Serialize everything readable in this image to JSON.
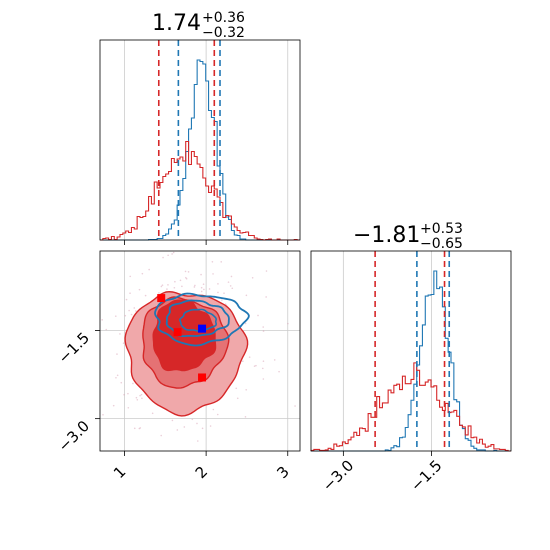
{
  "chart_data": {
    "type": "corner",
    "colors": {
      "series_a": "#1f77b4",
      "series_b": "#d62728",
      "grid": "#cccccc",
      "marker_truth": "#0000ff",
      "marker_red": "#ff0000"
    },
    "titles": {
      "x_param": {
        "main": "1.74",
        "sup": "+0.36",
        "sub": "−0.32"
      },
      "y_param": {
        "main": "−1.81",
        "sup": "+0.53",
        "sub": "−0.65"
      }
    },
    "x_axis": {
      "range": [
        0.7,
        3.15
      ],
      "ticks": [
        1,
        2,
        3
      ],
      "tick_labels": [
        "1",
        "2",
        "3"
      ]
    },
    "y_axis": {
      "range": [
        -3.55,
        -0.15
      ],
      "ticks": [
        -3.0,
        -1.5
      ],
      "tick_labels": [
        "−3.0",
        "−1.5"
      ]
    },
    "series": [
      {
        "key": "series_a",
        "hist_x_mean": 1.95,
        "hist_x_sd": 0.16,
        "hist_y_mean": -1.45,
        "hist_y_sd": 0.24,
        "quantiles_x": [
          1.66,
          2.17
        ],
        "quantiles_y": [
          -1.75,
          -1.2
        ]
      },
      {
        "key": "series_b",
        "hist_x_mean": 1.74,
        "hist_x_sd": 0.32,
        "hist_y_mean": -1.81,
        "hist_y_sd": 0.55,
        "quantiles_x": [
          1.42,
          2.1
        ],
        "quantiles_y": [
          -2.46,
          -1.28
        ]
      }
    ],
    "markers": [
      {
        "x": 1.95,
        "y": -1.47,
        "color": "marker_truth"
      },
      {
        "x": 1.45,
        "y": -0.95,
        "color": "marker_red"
      },
      {
        "x": 1.65,
        "y": -1.53,
        "color": "marker_red"
      },
      {
        "x": 1.95,
        "y": -2.3,
        "color": "marker_red"
      }
    ],
    "grid": true
  }
}
